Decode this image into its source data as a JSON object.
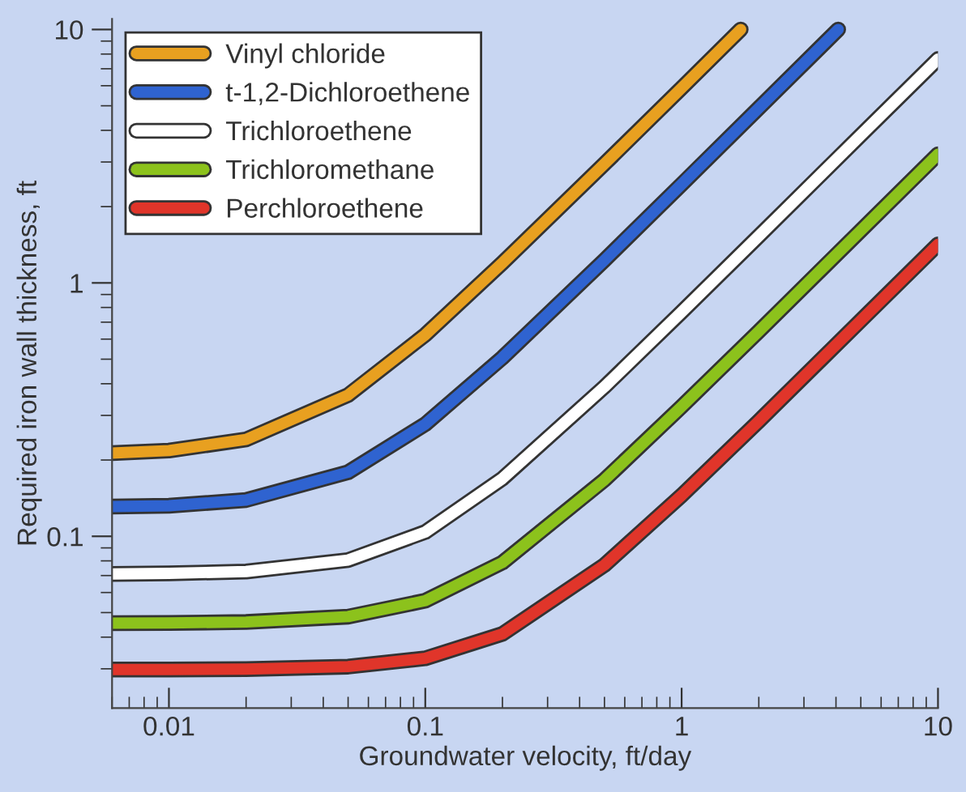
{
  "chart_data": {
    "type": "line",
    "xlabel": "Groundwater velocity, ft/day",
    "ylabel": "Required iron wall thickness, ft",
    "log": "xy",
    "xlim": [
      0.006,
      10
    ],
    "ylim": [
      0.021,
      11
    ],
    "xticks": [
      0.01,
      0.1,
      1,
      10
    ],
    "yticks": [
      0.1,
      1,
      10
    ],
    "grid": false,
    "legend": "top left",
    "marker": "none",
    "line_style": "solid",
    "series": [
      {
        "name": "Vinyl chloride",
        "color": "#e8a020",
        "x": [
          0.006,
          0.01,
          0.02,
          0.05,
          0.1,
          0.2,
          0.5,
          1,
          1.7
        ],
        "values": [
          0.213,
          0.218,
          0.241,
          0.361,
          0.624,
          1.2,
          2.95,
          5.88,
          10
        ]
      },
      {
        "name": "t-1,2-Dichloroethene",
        "color": "#2f63d0",
        "x": [
          0.006,
          0.01,
          0.02,
          0.05,
          0.1,
          0.2,
          0.5,
          1,
          2,
          4.08
        ],
        "values": [
          0.131,
          0.132,
          0.139,
          0.179,
          0.277,
          0.507,
          1.23,
          2.45,
          4.9,
          10
        ]
      },
      {
        "name": "Trichloroethene",
        "color": "#ffffff",
        "x": [
          0.006,
          0.01,
          0.02,
          0.05,
          0.1,
          0.2,
          0.5,
          1,
          2,
          5,
          10
        ],
        "values": [
          0.071,
          0.0714,
          0.0726,
          0.0806,
          0.104,
          0.169,
          0.389,
          0.768,
          1.53,
          3.83,
          7.65
        ]
      },
      {
        "name": "Trichloromethane",
        "color": "#8cc21c",
        "x": [
          0.006,
          0.01,
          0.02,
          0.05,
          0.1,
          0.2,
          0.5,
          1,
          2,
          5,
          10
        ],
        "values": [
          0.0454,
          0.0455,
          0.0459,
          0.0482,
          0.0557,
          0.0788,
          0.167,
          0.325,
          0.644,
          1.61,
          3.22
        ]
      },
      {
        "name": "Perchloroethene",
        "color": "#e0352a",
        "x": [
          0.006,
          0.01,
          0.02,
          0.05,
          0.1,
          0.2,
          0.5,
          1,
          2,
          5,
          10
        ],
        "values": [
          0.0298,
          0.0298,
          0.0299,
          0.0306,
          0.033,
          0.0412,
          0.077,
          0.145,
          0.285,
          0.711,
          1.42
        ]
      }
    ]
  }
}
